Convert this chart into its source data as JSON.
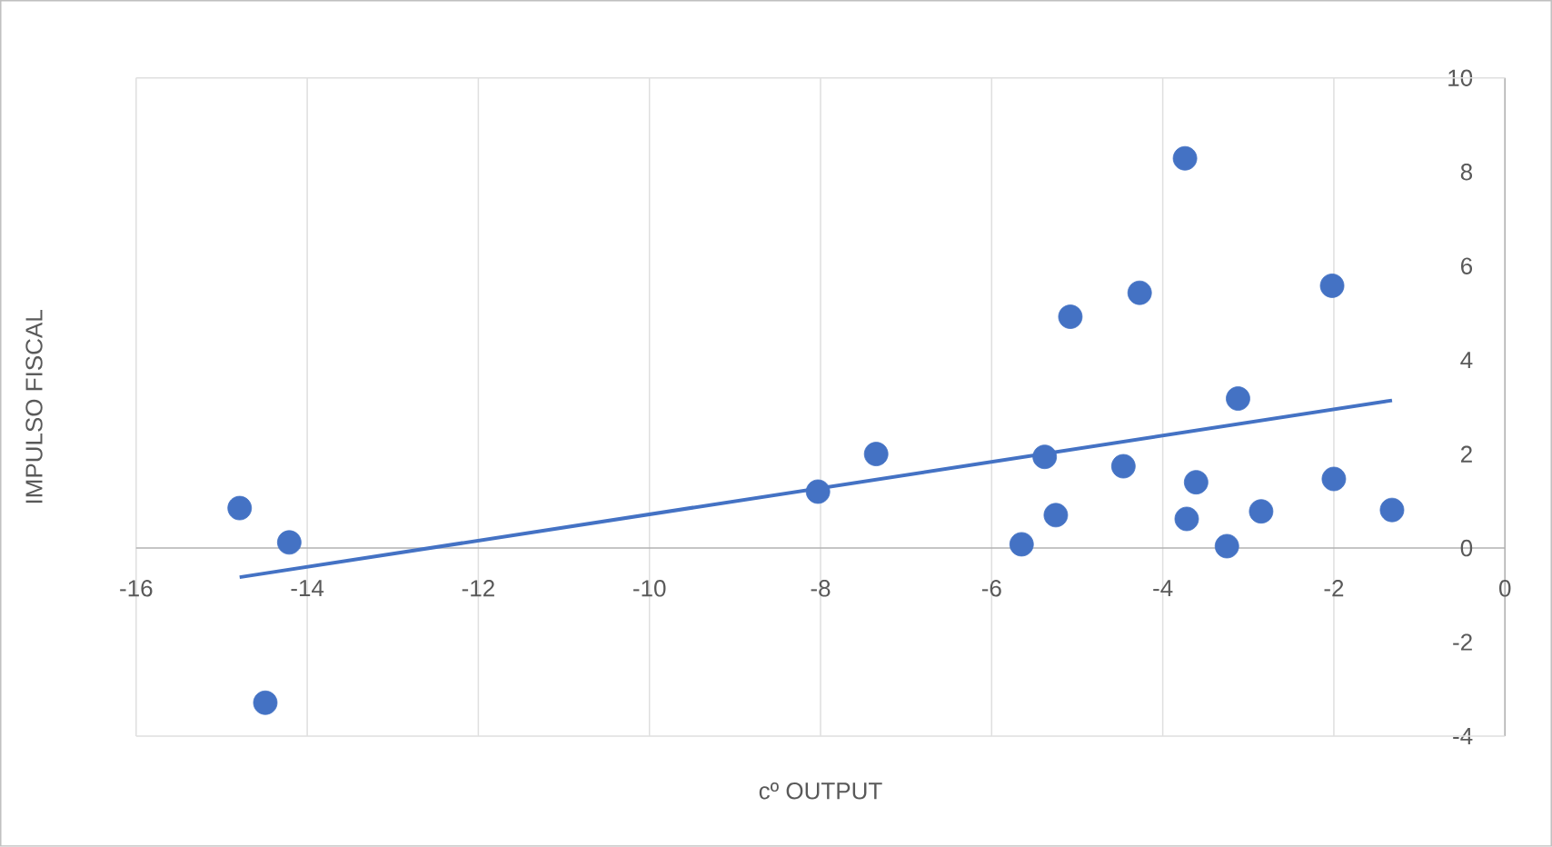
{
  "chart_data": {
    "type": "scatter",
    "xlabel": "cº OUTPUT",
    "ylabel": "IMPULSO FISCAL",
    "xlim": [
      -16,
      0
    ],
    "ylim": [
      -4,
      10
    ],
    "xticks": [
      -16,
      -14,
      -12,
      -10,
      -8,
      -6,
      -4,
      -2,
      0
    ],
    "yticks": [
      -4,
      -2,
      0,
      2,
      4,
      6,
      8,
      10
    ],
    "grid": "x",
    "series": [
      {
        "color": "#4472c4",
        "marker": "circle",
        "x": [
          -14.79,
          -14.21,
          -14.49,
          -8.03,
          -7.35,
          -5.65,
          -5.38,
          -5.25,
          -5.08,
          -4.46,
          -4.27,
          -3.74,
          -3.72,
          -3.61,
          -3.25,
          -3.12,
          -2.85,
          -2.02,
          -2.0,
          -1.32
        ],
        "values": [
          0.85,
          0.12,
          -3.29,
          1.2,
          2.0,
          0.08,
          1.94,
          0.7,
          4.92,
          1.74,
          5.43,
          8.29,
          0.62,
          1.4,
          0.04,
          3.18,
          0.78,
          5.58,
          1.47,
          0.81
        ]
      },
      {
        "type": "line",
        "color": "#4472c4",
        "marker": "none",
        "x": [
          -14.79,
          -1.32
        ],
        "values": [
          -0.62,
          3.14
        ]
      }
    ]
  }
}
